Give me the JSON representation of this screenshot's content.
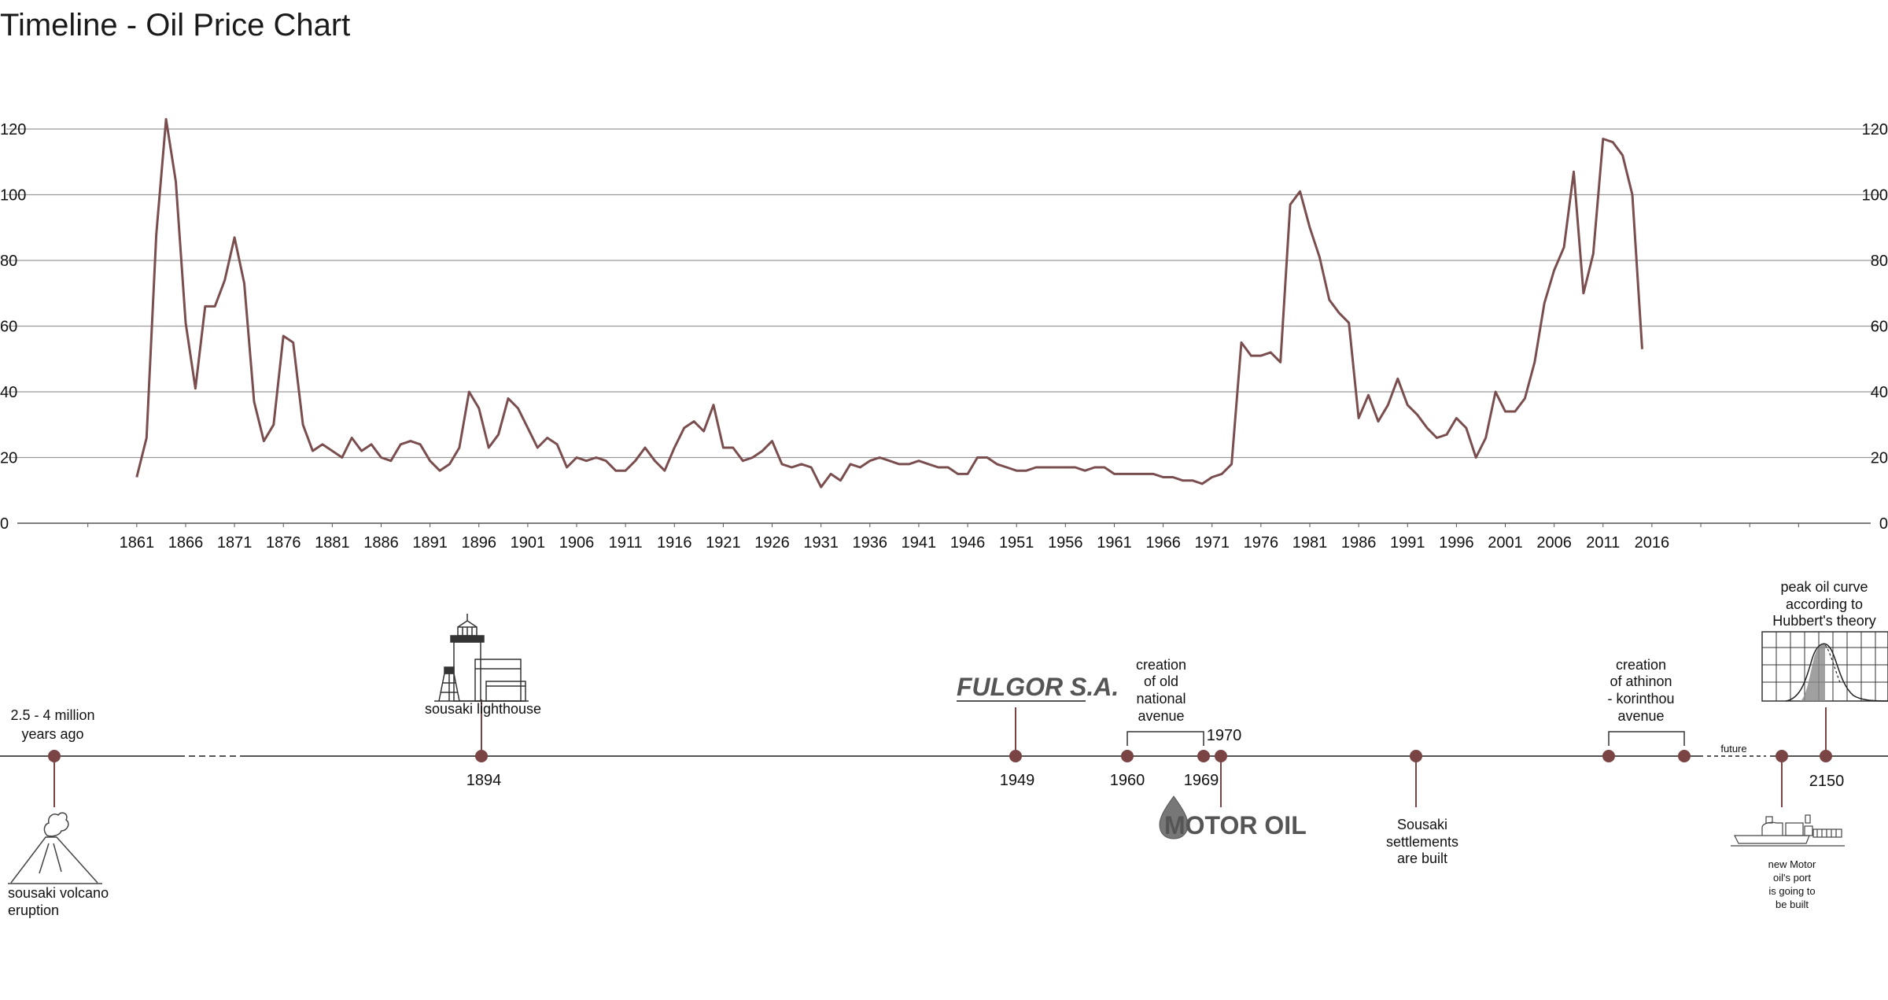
{
  "title": "Timeline - Oil Price Chart",
  "colors": {
    "line": "#7a4e4e",
    "marker": "#7a4444",
    "grid": "#9a9a9a",
    "axis": "#555555"
  },
  "chart_data": {
    "type": "line",
    "title": "Timeline - Oil Price Chart",
    "xlabel": "",
    "ylabel": "",
    "xlim": [
      1852,
      2035
    ],
    "ylim": [
      0,
      120
    ],
    "yticks": [
      "0",
      "20",
      "40",
      "60",
      "80",
      "100",
      "120"
    ],
    "xticks": [
      "1861",
      "1866",
      "1871",
      "1876",
      "1881",
      "1886",
      "1891",
      "1896",
      "1901",
      "1906",
      "1911",
      "1916",
      "1921",
      "1926",
      "1931",
      "1936",
      "1941",
      "1946",
      "1951",
      "1956",
      "1961",
      "1966",
      "1971",
      "1976",
      "1981",
      "1986",
      "1991",
      "1996",
      "2001",
      "2006",
      "2011",
      "2016"
    ],
    "grid": true,
    "x": [
      1861,
      1862,
      1863,
      1864,
      1865,
      1866,
      1867,
      1868,
      1869,
      1870,
      1871,
      1872,
      1873,
      1874,
      1875,
      1876,
      1877,
      1878,
      1879,
      1880,
      1881,
      1882,
      1883,
      1884,
      1885,
      1886,
      1887,
      1888,
      1889,
      1890,
      1891,
      1892,
      1893,
      1894,
      1895,
      1896,
      1897,
      1898,
      1899,
      1900,
      1901,
      1902,
      1903,
      1904,
      1905,
      1906,
      1907,
      1908,
      1909,
      1910,
      1911,
      1912,
      1913,
      1914,
      1915,
      1916,
      1917,
      1918,
      1919,
      1920,
      1921,
      1922,
      1923,
      1924,
      1925,
      1926,
      1927,
      1928,
      1929,
      1930,
      1931,
      1932,
      1933,
      1934,
      1935,
      1936,
      1937,
      1938,
      1939,
      1940,
      1941,
      1942,
      1943,
      1944,
      1945,
      1946,
      1947,
      1948,
      1949,
      1950,
      1951,
      1952,
      1953,
      1954,
      1955,
      1956,
      1957,
      1958,
      1959,
      1960,
      1961,
      1962,
      1963,
      1964,
      1965,
      1966,
      1967,
      1968,
      1969,
      1970,
      1971,
      1972,
      1973,
      1974,
      1975,
      1976,
      1977,
      1978,
      1979,
      1980,
      1981,
      1982,
      1983,
      1984,
      1985,
      1986,
      1987,
      1988,
      1989,
      1990,
      1991,
      1992,
      1993,
      1994,
      1995,
      1996,
      1997,
      1998,
      1999,
      2000,
      2001,
      2002,
      2003,
      2004,
      2005,
      2006,
      2007,
      2008,
      2009,
      2010,
      2011,
      2012,
      2013,
      2014,
      2015
    ],
    "series": [
      {
        "values": [
          14,
          26,
          88,
          123,
          104,
          61,
          41,
          66,
          66,
          74,
          87,
          73,
          37,
          25,
          30,
          57,
          55,
          30,
          22,
          24,
          22,
          20,
          26,
          22,
          24,
          20,
          19,
          24,
          25,
          24,
          19,
          16,
          18,
          23,
          40,
          35,
          23,
          27,
          38,
          35,
          29,
          23,
          26,
          24,
          17,
          20,
          19,
          20,
          19,
          16,
          16,
          19,
          23,
          19,
          16,
          23,
          29,
          31,
          28,
          36,
          23,
          23,
          19,
          20,
          22,
          25,
          18,
          17,
          18,
          17,
          11,
          15,
          13,
          18,
          17,
          19,
          20,
          19,
          18,
          18,
          19,
          18,
          17,
          17,
          15,
          15,
          20,
          20,
          18,
          17,
          16,
          16,
          17,
          17,
          17,
          17,
          17,
          16,
          17,
          17,
          15,
          15,
          15,
          15,
          15,
          14,
          14,
          13,
          13,
          12,
          14,
          15,
          18,
          55,
          51,
          51,
          52,
          49,
          97,
          101,
          90,
          81,
          68,
          64,
          61,
          32,
          39,
          31,
          36,
          44,
          36,
          33,
          29,
          26,
          27,
          32,
          29,
          20,
          26,
          40,
          34,
          34,
          38,
          49,
          67,
          77,
          84,
          107,
          70,
          82,
          117,
          116,
          112,
          100,
          53
        ]
      }
    ]
  },
  "timeline": {
    "events": [
      {
        "label_lines": [
          "2.5 - 4 million",
          "years ago"
        ]
      },
      {
        "year": "1894",
        "label_lines": [
          "sousaki lighthouse"
        ]
      },
      {
        "year": "1949",
        "label_lines": [
          "FULGOR S.A."
        ]
      },
      {
        "year": "1960",
        "label_lines": [
          "creation",
          "of old",
          "national",
          "avenue"
        ]
      },
      {
        "year": "1969"
      },
      {
        "year": "1970",
        "label_lines": [
          "MOTOR OIL"
        ]
      },
      {
        "label_lines": [
          "Sousaki",
          "settlements",
          "are built"
        ]
      },
      {
        "label_lines": [
          "creation",
          "of athinon",
          "- korinthou",
          "avenue"
        ]
      },
      {
        "label_lines": [
          "future"
        ]
      },
      {
        "label_lines": [
          "new Motor",
          "oil's port",
          "is going to",
          "be built"
        ]
      },
      {
        "year": "2150",
        "label_lines": [
          "peak oil curve",
          "according to",
          "Hubbert's theory"
        ]
      }
    ],
    "volcano_label": [
      "sousaki volcano",
      "eruption"
    ],
    "icons": [
      "volcano-icon",
      "lighthouse-icon",
      "fulgor-logo",
      "motor-oil-logo",
      "ship-port-icon",
      "peak-oil-curve-icon"
    ]
  }
}
